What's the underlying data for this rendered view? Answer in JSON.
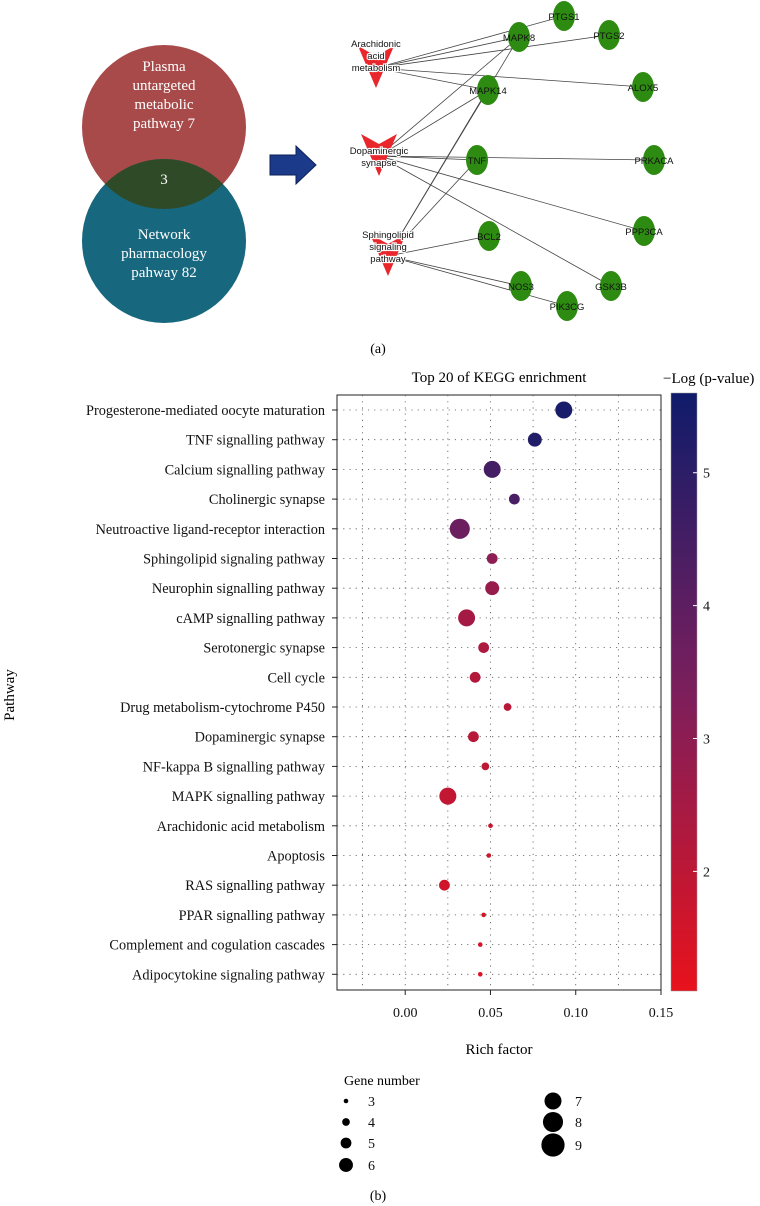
{
  "panel_a": {
    "label": "(a)",
    "venn": {
      "left_circle_text": [
        "Plasma",
        "untargeted",
        "metabolic",
        "pathway 7"
      ],
      "right_circle_text": [
        "Network",
        "pharmacology",
        "pahway 82"
      ],
      "overlap_count": "3",
      "colors": {
        "top": "#a84a4a",
        "bottom": "#17677f",
        "overlap": "#2f4a26"
      }
    },
    "arrow_color": "#1c3a8a",
    "network": {
      "pathway_nodes": [
        {
          "id": "aa",
          "lines": [
            "Arachidonic",
            "acid",
            "metabolism"
          ]
        },
        {
          "id": "dop",
          "lines": [
            "Dopaminergic",
            "synapse"
          ]
        },
        {
          "id": "sph",
          "lines": [
            "Sphingolipid",
            "signaling",
            "pathway"
          ]
        }
      ],
      "gene_nodes": [
        "PTGS1",
        "MAPK8",
        "PTGS2",
        "ALOX5",
        "MAPK14",
        "TNF",
        "PRKACA",
        "PPP3CA",
        "BCL2",
        "GSK3B",
        "NOS3",
        "PIK3CG"
      ],
      "edges": [
        [
          "aa",
          "MAPK8"
        ],
        [
          "aa",
          "PTGS1"
        ],
        [
          "aa",
          "PTGS2"
        ],
        [
          "aa",
          "ALOX5"
        ],
        [
          "aa",
          "MAPK14"
        ],
        [
          "dop",
          "MAPK8"
        ],
        [
          "dop",
          "MAPK14"
        ],
        [
          "dop",
          "TNF"
        ],
        [
          "dop",
          "PRKACA"
        ],
        [
          "dop",
          "PPP3CA"
        ],
        [
          "dop",
          "GSK3B"
        ],
        [
          "sph",
          "MAPK8"
        ],
        [
          "sph",
          "MAPK14"
        ],
        [
          "sph",
          "TNF"
        ],
        [
          "sph",
          "BCL2"
        ],
        [
          "sph",
          "NOS3"
        ],
        [
          "sph",
          "PIK3CG"
        ]
      ],
      "gene_color": "#2e8b12",
      "pathway_color": "#e8262b"
    }
  },
  "panel_b": {
    "label": "(b)"
  },
  "chart_data": {
    "type": "scatter",
    "title": "Top 20 of KEGG enrichment",
    "xlabel": "Rich factor",
    "ylabel": "Pathway",
    "xlim": [
      -0.04,
      0.15
    ],
    "xticks": [
      0.0,
      0.05,
      0.1,
      0.15
    ],
    "xtick_labels": [
      "0.00",
      "0.05",
      "0.10",
      "0.15"
    ],
    "grid": "dotted",
    "categories": [
      "Progesterone-mediated oocyte maturation",
      "TNF signalling pathway",
      "Calcium signalling pathway",
      "Cholinergic synapse",
      "Neutroactive ligand-receptor interaction",
      "Sphingolipid signaling pathway",
      "Neurophin signalling pathway",
      "cAMP signalling pathway",
      "Serotonergic synapse",
      "Cell cycle",
      "Drug metabolism-cytochrome P450",
      "Dopaminergic synapse",
      "NF-kappa B signalling pathway",
      "MAPK signalling pathway",
      "Arachidonic acid metabolism",
      "Apoptosis",
      "RAS signalling pathway",
      "PPAR signalling pathway",
      "Complement and cogulation cascades",
      "Adipocytokine signaling pathway"
    ],
    "rich_factor": [
      0.093,
      0.076,
      0.051,
      0.064,
      0.032,
      0.051,
      0.051,
      0.036,
      0.046,
      0.041,
      0.06,
      0.04,
      0.047,
      0.025,
      0.05,
      0.049,
      0.023,
      0.046,
      0.044,
      0.044
    ],
    "neg_log_p": [
      5.4,
      5.2,
      4.5,
      4.4,
      3.7,
      3.0,
      2.8,
      2.5,
      2.3,
      2.2,
      2.1,
      2.1,
      2.0,
      1.9,
      1.7,
      1.6,
      1.6,
      1.5,
      1.5,
      1.4
    ],
    "gene_number": [
      7,
      6,
      7,
      5,
      8,
      5,
      6,
      7,
      5,
      5,
      4,
      5,
      4,
      7,
      3,
      3,
      5,
      3,
      3,
      3
    ],
    "color_scale": {
      "title": "−Log (p-value)",
      "min": 1.1,
      "max": 5.6,
      "ticks": [
        2,
        3,
        4,
        5
      ],
      "low_color": "#e8121c",
      "mid_color": "#7c1f5c",
      "high_color": "#0f1c6b"
    },
    "size_legend": {
      "title": "Gene number",
      "values": [
        3,
        4,
        5,
        6,
        7,
        8,
        9
      ]
    }
  }
}
